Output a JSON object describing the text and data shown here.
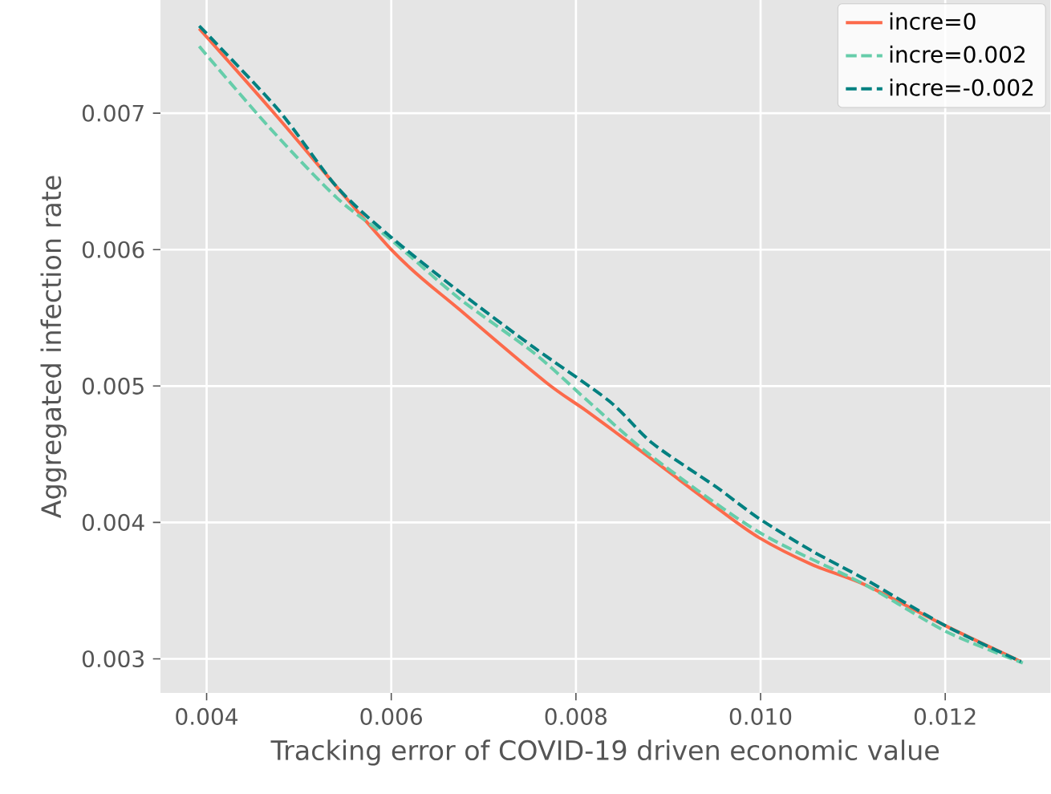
{
  "chart_data": {
    "type": "line",
    "xlabel": "Tracking error of COVID-19 driven economic value",
    "ylabel": "Aggregated infection rate",
    "xlim": [
      0.0035,
      0.01314
    ],
    "ylim": [
      0.00275,
      0.00783
    ],
    "xticks": [
      0.004,
      0.006,
      0.008,
      {
        "value": 0.01,
        "label": "0.010"
      },
      0.012
    ],
    "yticks": [
      0.003,
      0.004,
      0.005,
      0.006,
      0.007
    ],
    "grid": true,
    "legend": "top right",
    "series": [
      {
        "name": "incre=0",
        "color": "#fc6a4b",
        "line_style": "solid",
        "x": [
          0.00392,
          0.00477,
          0.006,
          0.00674,
          0.00767,
          0.00813,
          0.00883,
          0.00952,
          0.00998,
          0.01056,
          0.01114,
          0.01201,
          0.01282
        ],
        "values": [
          0.00762,
          0.00697,
          0.006,
          0.00556,
          0.00503,
          0.00481,
          0.00446,
          0.00411,
          0.00389,
          0.00369,
          0.00354,
          0.00324,
          0.00298
        ]
      },
      {
        "name": "incre=0.002",
        "color": "#66cdaa",
        "line_style": "dashed",
        "x": [
          0.00392,
          0.00466,
          0.00541,
          0.006,
          0.00674,
          0.00755,
          0.00813,
          0.00883,
          0.00998,
          0.01114,
          0.01201,
          0.01284
        ],
        "values": [
          0.00749,
          0.00691,
          0.00638,
          0.00607,
          0.00564,
          0.00524,
          0.00489,
          0.00448,
          0.00393,
          0.00354,
          0.0032,
          0.00297
        ]
      },
      {
        "name": "incre=-0.002",
        "color": "#008080",
        "line_style": "dashed",
        "x": [
          0.00392,
          0.00477,
          0.00541,
          0.006,
          0.00674,
          0.00755,
          0.00836,
          0.00883,
          0.00952,
          0.00998,
          0.01056,
          0.01114,
          0.01201,
          0.01282
        ],
        "values": [
          0.00764,
          0.00703,
          0.00646,
          0.00609,
          0.00569,
          0.00528,
          0.00489,
          0.00458,
          0.00426,
          0.00403,
          0.00379,
          0.00358,
          0.00324,
          0.00298
        ]
      }
    ]
  }
}
